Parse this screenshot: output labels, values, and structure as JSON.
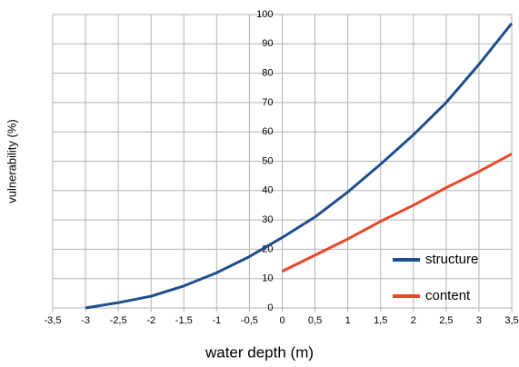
{
  "chart_data": {
    "type": "line",
    "x_label": "water depth (m)",
    "y_label": "vulnerability (%)",
    "x": [
      -3,
      -2.5,
      -2,
      -1.5,
      -1,
      -0.5,
      0,
      0.5,
      1,
      1.5,
      2,
      2.5,
      3,
      3.5
    ],
    "series": [
      {
        "name": "structure",
        "color": "#1f4e8c",
        "values": [
          0,
          1.8,
          4,
          7.5,
          12,
          17.5,
          24,
          31,
          39.5,
          49,
          59,
          70,
          83,
          97
        ]
      },
      {
        "name": "content",
        "color": "#e8472a",
        "values": [
          null,
          null,
          null,
          null,
          null,
          null,
          12.5,
          18,
          23.5,
          29.5,
          35,
          41,
          46.5,
          52.5
        ]
      }
    ],
    "xlim": [
      -3.5,
      3.5
    ],
    "xticks": [
      {
        "value": -3.5,
        "label": "-3,5"
      },
      -3,
      {
        "value": -2.5,
        "label": "-2,5"
      },
      -2,
      {
        "value": -1.5,
        "label": "-1,5"
      },
      -1,
      {
        "value": -0.5,
        "label": "-0,5"
      },
      0,
      {
        "value": 0.5,
        "label": "0,5"
      },
      1,
      {
        "value": 1.5,
        "label": "1,5"
      },
      2,
      {
        "value": 2.5,
        "label": "2,5"
      },
      3,
      {
        "value": 3.5,
        "label": "3,5"
      }
    ],
    "ylim": [
      0,
      100
    ],
    "yticks": [
      0,
      10,
      20,
      30,
      40,
      50,
      60,
      70,
      80,
      90,
      100
    ],
    "grid": true,
    "legend": "lower right"
  }
}
